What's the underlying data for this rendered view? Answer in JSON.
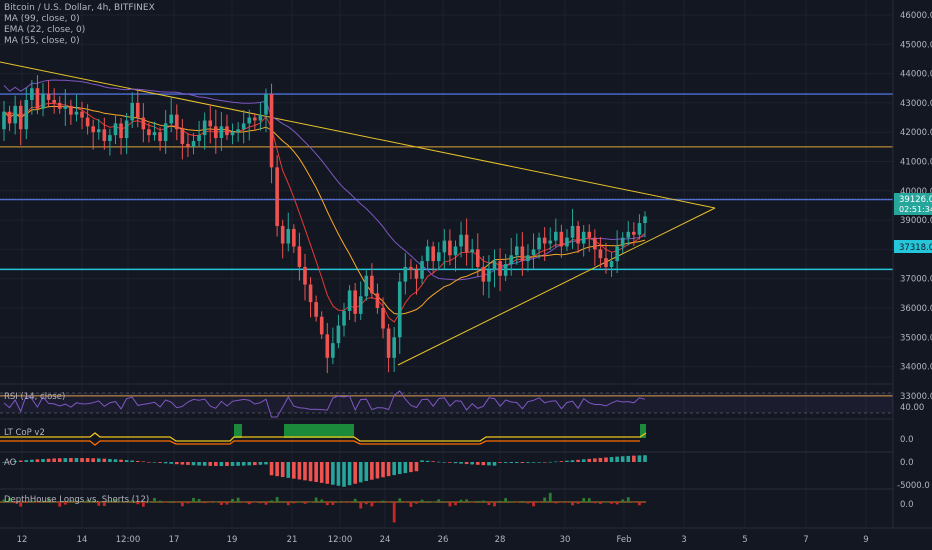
{
  "header": {
    "symbol": "Bitcoin / U.S. Dollar, 4h, BITFINEX",
    "indicators": [
      "MA (99, close, 0)",
      "EMA (22, close, 0)",
      "MA (55, close, 0)"
    ]
  },
  "price_axis": {
    "ticks": [
      "46000.0",
      "45000.0",
      "44000.0",
      "43000.0",
      "42000.0",
      "41000.0",
      "40000.0",
      "39000.0",
      "38000.0",
      "37000.0",
      "36000.0",
      "35000.0",
      "34000.0",
      "33000.0"
    ],
    "current_price": "39126.0",
    "countdown": "02:51:34",
    "level_label": "37318.0"
  },
  "panes": {
    "rsi": {
      "label": "RSI (14, close)",
      "value": "40.00"
    },
    "ltcop": {
      "label": "LT CoP v2",
      "value": "0.0"
    },
    "ao": {
      "label": "AO",
      "value_top": "0.0",
      "value_bottom": "-5000.0"
    },
    "dh": {
      "label": "DepthHouse Longs vs. Shorts (12)",
      "value": "0.0"
    }
  },
  "time_axis": {
    "labels": [
      "12",
      "14",
      "12:00",
      "17",
      "19",
      "21",
      "12:00",
      "24",
      "26",
      "28",
      "30",
      "Feb",
      "3",
      "5",
      "7",
      "9"
    ]
  },
  "colors": {
    "background": "#131722",
    "up": "#26a69a",
    "down": "#ef5350",
    "ma99": "#7e57c2",
    "ema22": "#e53935",
    "ma55": "#f9a825",
    "trendline": "#e6c229",
    "blue_level": "#4f6fd8",
    "cyan_level": "#26c6da",
    "orange_level": "#e2a53a"
  },
  "chart_data": {
    "type": "candlestick",
    "x_labels": [
      "12",
      "14",
      "12:00",
      "17",
      "19",
      "21",
      "12:00",
      "24",
      "26",
      "28",
      "30",
      "Feb",
      "3",
      "5",
      "7",
      "9"
    ],
    "close_prices": [
      42700,
      42300,
      42900,
      42100,
      43100,
      43500,
      42800,
      43300,
      43100,
      43000,
      42800,
      42900,
      42600,
      42700,
      42500,
      42200,
      42000,
      42100,
      41700,
      41900,
      42300,
      41800,
      42400,
      43000,
      42500,
      42100,
      41900,
      42000,
      41700,
      42300,
      42600,
      42100,
      41600,
      41500,
      41700,
      41900,
      42400,
      42200,
      41800,
      42200,
      41900,
      42000,
      42100,
      42300,
      42500,
      42400,
      42600,
      43300,
      40800,
      38800,
      38200,
      38700,
      38100,
      37400,
      36800,
      36200,
      35700,
      35100,
      34300,
      34800,
      35400,
      35900,
      36600,
      35800,
      36400,
      37100,
      36500,
      36000,
      35300,
      34300,
      35000,
      36900,
      37400,
      37300,
      37000,
      37600,
      38100,
      37600,
      37900,
      38300,
      37800,
      38100,
      38500,
      37900,
      38000,
      37400,
      36900,
      37300,
      37600,
      37100,
      37500,
      37800,
      38100,
      37600,
      37800,
      38000,
      38400,
      38200,
      38300,
      38600,
      38100,
      38400,
      38800,
      38200,
      38600,
      38400,
      38000,
      37700,
      37400,
      37600,
      38100,
      38400,
      38600,
      38500,
      38900,
      39126
    ],
    "levels": [
      43300,
      41500,
      39700,
      37318,
      33000
    ],
    "ylim": [
      32700,
      46600
    ]
  }
}
